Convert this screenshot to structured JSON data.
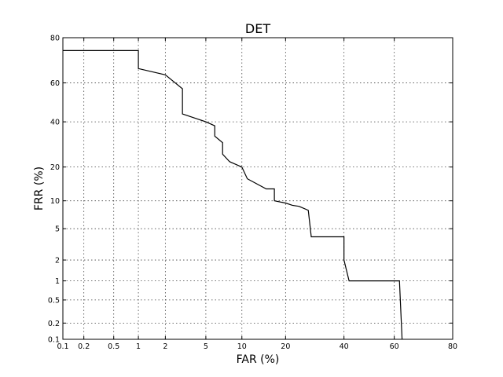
{
  "chart_data": {
    "type": "line",
    "title": "DET",
    "xlabel": "FAR (%)",
    "ylabel": "FRR (%)",
    "x_ticks": [
      0.1,
      0.2,
      0.5,
      1,
      2,
      5,
      10,
      20,
      40,
      60,
      80
    ],
    "x_tick_labels": [
      "0.1",
      "0.2",
      "0.5",
      "1",
      "2",
      "5",
      "10",
      "20",
      "40",
      "60",
      "80"
    ],
    "y_ticks": [
      0.1,
      0.2,
      0.5,
      1,
      2,
      5,
      10,
      20,
      40,
      60,
      80
    ],
    "y_tick_labels": [
      "0.1",
      "0.2",
      "0.5",
      "1",
      "2",
      "5",
      "10",
      "20",
      "40",
      "60",
      "80"
    ],
    "xlim": [
      0.1,
      80
    ],
    "ylim": [
      0.1,
      80
    ],
    "scale": "normal-deviate",
    "grid": true,
    "series": [
      {
        "color": "#000000",
        "points": [
          [
            0.1,
            75
          ],
          [
            1,
            75
          ],
          [
            1,
            67
          ],
          [
            2,
            64
          ],
          [
            3,
            57
          ],
          [
            3,
            44
          ],
          [
            5,
            40
          ],
          [
            6,
            38
          ],
          [
            6,
            33
          ],
          [
            7,
            30
          ],
          [
            7,
            25
          ],
          [
            8,
            22
          ],
          [
            10,
            20
          ],
          [
            11,
            16
          ],
          [
            15,
            13
          ],
          [
            17,
            13
          ],
          [
            17,
            10
          ],
          [
            20,
            9.5
          ],
          [
            22,
            9
          ],
          [
            24,
            8.8
          ],
          [
            27,
            8
          ],
          [
            28,
            4
          ],
          [
            40,
            4
          ],
          [
            40,
            2
          ],
          [
            42,
            1
          ],
          [
            62,
            1
          ],
          [
            63,
            0.1
          ]
        ]
      }
    ]
  }
}
